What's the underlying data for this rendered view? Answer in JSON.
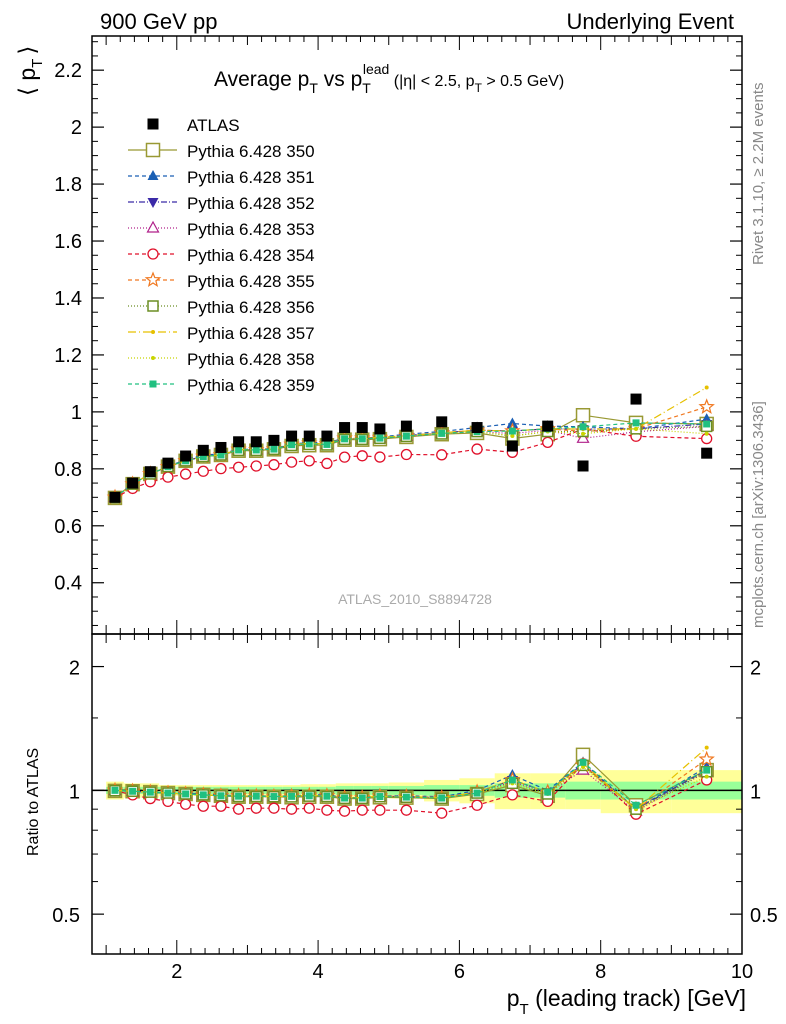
{
  "header": {
    "left": "900 GeV pp",
    "right": "Underlying Event"
  },
  "side_labels": {
    "rivet": "Rivet 3.1.10, ≥ 2.2M events",
    "mcplots": "mcplots.cern.ch [arXiv:1306.3436]"
  },
  "plot_title": {
    "main": "Average p",
    "sub1": "T",
    "vs": " vs p",
    "sub2": "T",
    "sup2": "lead",
    "cuts": " (|η| < 2.5, p",
    "sub3": "T",
    "cuts_end": " > 0.5 GeV)"
  },
  "watermark": "ATLAS_2010_S8894728",
  "chart_data": {
    "type": "scatter",
    "top_panel": {
      "ylabel_main": "⟨ p",
      "ylabel_sub": "T",
      "ylabel_end": "⟩",
      "ylim": [
        0.22,
        2.32
      ],
      "yticks": [
        0.4,
        0.6,
        0.8,
        1.0,
        1.2,
        1.4,
        1.6,
        1.8,
        2.0,
        2.2
      ],
      "ytick_labels": [
        "0.4",
        "0.6",
        "0.8",
        "1",
        "1.2",
        "1.4",
        "1.6",
        "1.8",
        "2",
        "2.2"
      ]
    },
    "ratio_panel": {
      "ylabel": "Ratio to ATLAS",
      "ylim": [
        0.4,
        2.4
      ],
      "log_scale": true,
      "yticks": [
        0.5,
        1,
        2
      ],
      "ytick_labels": [
        "0.5",
        "1",
        "2"
      ]
    },
    "xlabel_main": "p",
    "xlabel_sub": "T",
    "xlabel_end": " (leading track) [GeV]",
    "xlim": [
      0.8,
      10.0
    ],
    "xticks": [
      2,
      4,
      6,
      8,
      10
    ],
    "xtick_labels": [
      "2",
      "4",
      "6",
      "8",
      "10"
    ],
    "x": [
      1.125,
      1.375,
      1.625,
      1.875,
      2.125,
      2.375,
      2.625,
      2.875,
      3.125,
      3.375,
      3.625,
      3.875,
      4.125,
      4.375,
      4.625,
      4.875,
      5.25,
      5.75,
      6.25,
      6.75,
      7.25,
      7.75,
      8.5,
      9.5
    ],
    "band_edges": [
      1.0,
      1.25,
      1.5,
      1.75,
      2.0,
      2.25,
      2.5,
      2.75,
      3.0,
      3.25,
      3.5,
      3.75,
      4.0,
      4.25,
      4.5,
      4.75,
      5.0,
      5.5,
      6.0,
      6.5,
      7.0,
      7.5,
      8.0,
      9.0,
      10.0
    ],
    "band_green": [
      0.02,
      0.02,
      0.02,
      0.02,
      0.02,
      0.02,
      0.02,
      0.02,
      0.02,
      0.02,
      0.02,
      0.02,
      0.02,
      0.025,
      0.025,
      0.025,
      0.025,
      0.03,
      0.03,
      0.04,
      0.04,
      0.05,
      0.05,
      0.05
    ],
    "band_yellow": [
      0.05,
      0.04,
      0.04,
      0.03,
      0.03,
      0.03,
      0.03,
      0.03,
      0.03,
      0.03,
      0.03,
      0.035,
      0.035,
      0.04,
      0.04,
      0.04,
      0.045,
      0.06,
      0.07,
      0.1,
      0.1,
      0.1,
      0.12,
      0.12
    ],
    "data": {
      "name": "ATLAS",
      "values": [
        0.7,
        0.75,
        0.79,
        0.82,
        0.845,
        0.865,
        0.875,
        0.895,
        0.895,
        0.9,
        0.915,
        0.915,
        0.915,
        0.945,
        0.945,
        0.94,
        0.95,
        0.965,
        0.945,
        0.88,
        0.95,
        0.81,
        1.045,
        0.855
      ]
    },
    "series": [
      {
        "name": "Pythia 6.428 350",
        "color": "#999933",
        "marker": "open-square",
        "dash": "",
        "big": true,
        "ratio": [
          0.997,
          0.995,
          0.99,
          0.985,
          0.98,
          0.975,
          0.97,
          0.965,
          0.965,
          0.965,
          0.962,
          0.965,
          0.965,
          0.955,
          0.955,
          0.962,
          0.96,
          0.955,
          0.98,
          1.03,
          0.97,
          1.22,
          0.92,
          1.12
        ]
      },
      {
        "name": "Pythia 6.428 351",
        "color": "#1a5fb4",
        "marker": "filled-triangle-up",
        "dash": "4,3",
        "ratio": [
          1.0,
          0.995,
          0.99,
          0.985,
          0.985,
          0.98,
          0.975,
          0.97,
          0.97,
          0.968,
          0.97,
          0.975,
          0.975,
          0.96,
          0.96,
          0.97,
          0.97,
          0.965,
          1.0,
          1.09,
          1.0,
          1.17,
          0.9,
          1.14
        ]
      },
      {
        "name": "Pythia 6.428 352",
        "color": "#3b2aa8",
        "marker": "filled-triangle-down",
        "dash": "6,2,1,2",
        "ratio": [
          1.0,
          0.995,
          0.99,
          0.985,
          0.98,
          0.975,
          0.97,
          0.968,
          0.968,
          0.966,
          0.968,
          0.97,
          0.97,
          0.958,
          0.958,
          0.968,
          0.965,
          0.96,
          0.99,
          1.06,
          0.99,
          1.16,
          0.9,
          1.12
        ]
      },
      {
        "name": "Pythia 6.428 353",
        "color": "#b0208a",
        "marker": "open-triangle-up",
        "dash": "1,2",
        "ratio": [
          1.0,
          0.995,
          0.99,
          0.985,
          0.98,
          0.975,
          0.97,
          0.968,
          0.968,
          0.966,
          0.966,
          0.97,
          0.968,
          0.958,
          0.958,
          0.966,
          0.962,
          0.958,
          0.985,
          1.05,
          0.985,
          1.12,
          0.89,
          1.11
        ]
      },
      {
        "name": "Pythia 6.428 354",
        "color": "#e0102a",
        "marker": "open-circle",
        "dash": "4,3",
        "ratio": [
          0.998,
          0.975,
          0.955,
          0.94,
          0.925,
          0.915,
          0.915,
          0.9,
          0.905,
          0.905,
          0.9,
          0.905,
          0.895,
          0.89,
          0.895,
          0.895,
          0.895,
          0.88,
          0.92,
          0.975,
          0.94,
          1.16,
          0.875,
          1.06
        ]
      },
      {
        "name": "Pythia 6.428 355",
        "color": "#f07820",
        "marker": "open-star",
        "dash": "4,3",
        "ratio": [
          1.0,
          0.995,
          0.99,
          0.985,
          0.98,
          0.975,
          0.97,
          0.97,
          0.968,
          0.966,
          0.968,
          0.972,
          0.97,
          0.96,
          0.96,
          0.968,
          0.965,
          0.96,
          0.99,
          1.06,
          0.99,
          1.15,
          0.9,
          1.19
        ]
      },
      {
        "name": "Pythia 6.428 356",
        "color": "#6b8e23",
        "marker": "open-square",
        "dash": "1,2",
        "ratio": [
          0.998,
          0.995,
          0.99,
          0.985,
          0.98,
          0.975,
          0.97,
          0.966,
          0.966,
          0.965,
          0.964,
          0.968,
          0.966,
          0.956,
          0.956,
          0.965,
          0.962,
          0.956,
          0.985,
          1.04,
          0.98,
          1.15,
          0.9,
          1.11
        ]
      },
      {
        "name": "Pythia 6.428 357",
        "color": "#e6c000",
        "marker": "small-dot",
        "dash": "8,3,1,3",
        "ratio": [
          1.0,
          0.995,
          0.99,
          0.985,
          0.98,
          0.975,
          0.97,
          0.97,
          0.968,
          0.966,
          0.968,
          0.972,
          0.97,
          0.96,
          0.96,
          0.968,
          0.965,
          0.96,
          0.99,
          1.06,
          0.99,
          1.16,
          0.9,
          1.27
        ]
      },
      {
        "name": "Pythia 6.428 358",
        "color": "#c8d400",
        "marker": "small-dot",
        "dash": "1,2",
        "ratio": [
          1.0,
          0.995,
          0.99,
          0.985,
          0.98,
          0.975,
          0.97,
          0.968,
          0.968,
          0.966,
          0.966,
          0.97,
          0.968,
          0.958,
          0.958,
          0.966,
          0.963,
          0.958,
          0.985,
          1.04,
          0.98,
          1.14,
          0.9,
          1.08
        ]
      },
      {
        "name": "Pythia 6.428 359",
        "color": "#20c080",
        "marker": "filled-square-small",
        "dash": "4,3",
        "ratio": [
          1.0,
          0.995,
          0.99,
          0.985,
          0.98,
          0.975,
          0.97,
          0.968,
          0.968,
          0.966,
          0.967,
          0.97,
          0.968,
          0.958,
          0.958,
          0.966,
          0.963,
          0.958,
          0.985,
          1.06,
          0.99,
          1.17,
          0.92,
          1.12
        ]
      }
    ]
  }
}
